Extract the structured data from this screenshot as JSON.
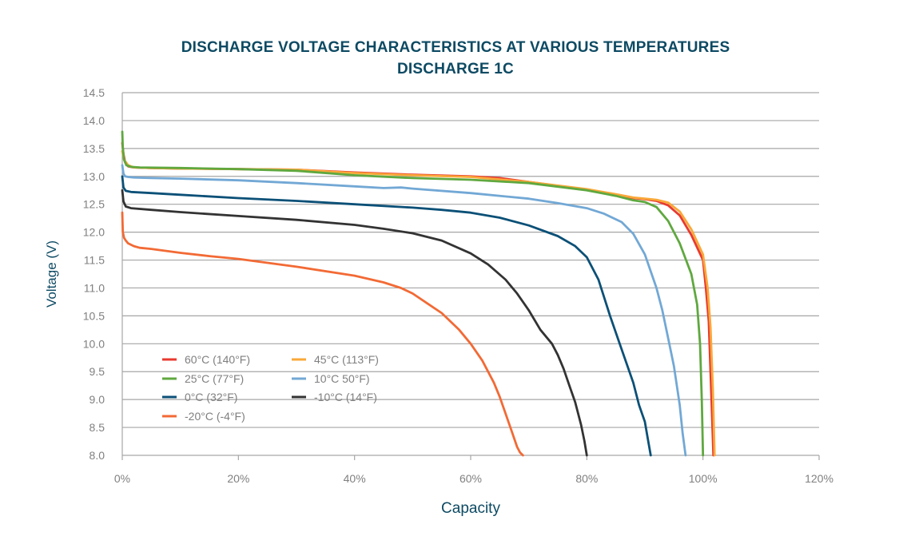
{
  "colors": {
    "title": "#0d4a63",
    "axis_label": "#0d4a63",
    "tick": "#808080",
    "grid": "#a6a6a6",
    "axis": "#a6a6a6"
  },
  "chart_data": {
    "type": "line",
    "title": "DISCHARGE VOLTAGE CHARACTERISTICS AT VARIOUS TEMPERATURES",
    "subtitle": "DISCHARGE 1C",
    "xlabel": "Capacity",
    "ylabel": "Voltage (V)",
    "xlim": [
      0,
      120
    ],
    "ylim": [
      8.0,
      14.5
    ],
    "x_ticks": [
      0,
      20,
      40,
      60,
      80,
      100,
      120
    ],
    "x_tick_labels": [
      "0%",
      "20%",
      "40%",
      "60%",
      "80%",
      "100%",
      "120%"
    ],
    "y_ticks": [
      8.0,
      8.5,
      9.0,
      9.5,
      10.0,
      10.5,
      11.0,
      11.5,
      12.0,
      12.5,
      13.0,
      13.5,
      14.0,
      14.5
    ],
    "y_tick_labels": [
      "8.0",
      "8.5",
      "9.0",
      "9.5",
      "10.0",
      "10.5",
      "11.0",
      "11.5",
      "12.0",
      "12.5",
      "13.0",
      "13.5",
      "14.0",
      "14.5"
    ],
    "grid": "horizontal",
    "legend_position": "bottom-left",
    "series": [
      {
        "name": "60°C (140°F)",
        "color": "#e83a2f",
        "x": [
          0,
          0.2,
          0.5,
          1,
          2,
          5,
          10,
          20,
          30,
          40,
          50,
          60,
          65,
          70,
          75,
          80,
          85,
          88,
          90,
          92,
          94,
          96,
          98,
          100,
          100.5,
          101,
          101.3,
          101.6,
          101.8
        ],
        "y": [
          13.6,
          13.4,
          13.25,
          13.18,
          13.16,
          13.15,
          13.14,
          13.13,
          13.12,
          13.07,
          13.03,
          13.0,
          12.97,
          12.9,
          12.83,
          12.76,
          12.67,
          12.61,
          12.59,
          12.56,
          12.48,
          12.3,
          11.95,
          11.5,
          11.0,
          10.4,
          9.5,
          8.6,
          8.0
        ]
      },
      {
        "name": "45°C (113°F)",
        "color": "#f9a839",
        "x": [
          0,
          0.3,
          1,
          2,
          5,
          10,
          20,
          30,
          40,
          50,
          60,
          70,
          80,
          85,
          88,
          90,
          92,
          94,
          96,
          98,
          100,
          100.8,
          101.3,
          101.7,
          102.0
        ],
        "y": [
          13.45,
          13.3,
          13.2,
          13.16,
          13.15,
          13.14,
          13.13,
          13.12,
          13.06,
          13.02,
          12.99,
          12.9,
          12.77,
          12.68,
          12.62,
          12.6,
          12.58,
          12.53,
          12.37,
          12.05,
          11.6,
          11.0,
          10.3,
          9.2,
          8.0
        ]
      },
      {
        "name": "25°C (77°F)",
        "color": "#5fa83f",
        "x": [
          0,
          0.1,
          0.3,
          0.7,
          1.5,
          3,
          10,
          20,
          30,
          40,
          50,
          60,
          70,
          80,
          85,
          88,
          90,
          92,
          94,
          96,
          98,
          99,
          99.5,
          99.8,
          100.0
        ],
        "y": [
          13.8,
          13.5,
          13.3,
          13.2,
          13.17,
          13.16,
          13.15,
          13.13,
          13.1,
          13.02,
          12.97,
          12.94,
          12.88,
          12.75,
          12.65,
          12.57,
          12.54,
          12.45,
          12.2,
          11.8,
          11.25,
          10.7,
          10.0,
          9.0,
          8.0
        ]
      },
      {
        "name": "10°C 50°F)",
        "color": "#72a8d5",
        "x": [
          0,
          0.2,
          0.5,
          1,
          2,
          5,
          10,
          20,
          30,
          40,
          45,
          48,
          50,
          60,
          70,
          75,
          80,
          83,
          86,
          88,
          90,
          92,
          93,
          94,
          95,
          96,
          96.5,
          97.0
        ],
        "y": [
          13.2,
          13.05,
          13.0,
          12.99,
          12.98,
          12.97,
          12.96,
          12.93,
          12.88,
          12.82,
          12.79,
          12.8,
          12.78,
          12.7,
          12.6,
          12.52,
          12.43,
          12.33,
          12.18,
          11.97,
          11.6,
          11.0,
          10.6,
          10.1,
          9.6,
          8.9,
          8.4,
          8.0
        ]
      },
      {
        "name": "0°C (32°F)",
        "color": "#0b5077",
        "x": [
          0,
          0.2,
          0.6,
          1.5,
          5,
          10,
          20,
          30,
          40,
          50,
          55,
          60,
          65,
          70,
          75,
          78,
          80,
          82,
          84,
          86,
          88,
          89,
          90,
          90.5,
          91.0
        ],
        "y": [
          13.0,
          12.8,
          12.74,
          12.72,
          12.7,
          12.67,
          12.61,
          12.56,
          12.5,
          12.44,
          12.4,
          12.35,
          12.26,
          12.12,
          11.93,
          11.75,
          11.55,
          11.15,
          10.5,
          9.9,
          9.3,
          8.9,
          8.6,
          8.3,
          8.0
        ]
      },
      {
        "name": "-10°C (14°F)",
        "color": "#333333",
        "x": [
          0,
          0.2,
          0.6,
          1.5,
          5,
          10,
          20,
          30,
          40,
          45,
          50,
          55,
          60,
          63,
          66,
          68,
          70,
          72,
          74,
          75,
          76,
          77,
          78,
          79,
          79.6,
          80.0
        ],
        "y": [
          12.75,
          12.55,
          12.46,
          12.43,
          12.4,
          12.36,
          12.29,
          12.22,
          12.13,
          12.06,
          11.98,
          11.85,
          11.62,
          11.42,
          11.15,
          10.9,
          10.6,
          10.25,
          10.0,
          9.8,
          9.55,
          9.25,
          8.95,
          8.55,
          8.25,
          8.0
        ]
      },
      {
        "name": "-20°C (-4°F)",
        "color": "#f26a35",
        "x": [
          0,
          0.1,
          0.3,
          0.6,
          1,
          2,
          3,
          5,
          10,
          15,
          20,
          30,
          40,
          45,
          48,
          50,
          55,
          58,
          60,
          62,
          64,
          65,
          66,
          67,
          68,
          68.5,
          69.0
        ],
        "y": [
          12.35,
          12.0,
          11.9,
          11.85,
          11.8,
          11.75,
          11.72,
          11.7,
          11.63,
          11.57,
          11.52,
          11.38,
          11.22,
          11.1,
          11.0,
          10.9,
          10.55,
          10.25,
          10.0,
          9.7,
          9.3,
          9.05,
          8.75,
          8.45,
          8.15,
          8.05,
          8.0
        ]
      }
    ]
  }
}
